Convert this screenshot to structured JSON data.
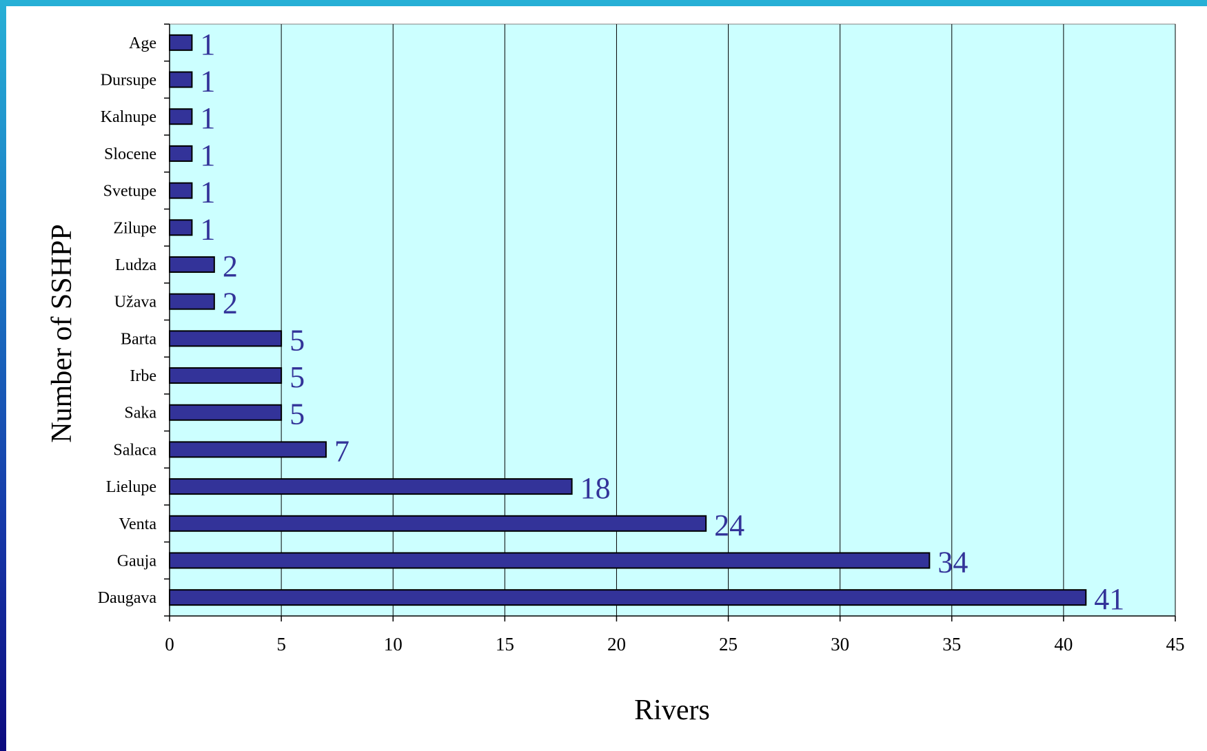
{
  "colors": {
    "plot_background": "#ccffff",
    "bar_fill": "#333399",
    "bar_stroke": "#000000",
    "data_label": "#333399",
    "gridline": "#000000"
  },
  "chart_data": {
    "type": "bar",
    "orientation": "horizontal",
    "categories": [
      "Age",
      "Dursupe",
      "Kalnupe",
      "Slocene",
      "Svetupe",
      "Zilupe",
      "Ludza",
      "Užava",
      "Barta",
      "Irbe",
      "Saka",
      "Salaca",
      "Lielupe",
      "Venta",
      "Gauja",
      "Daugava"
    ],
    "values": [
      1,
      1,
      1,
      1,
      1,
      1,
      2,
      2,
      5,
      5,
      5,
      7,
      18,
      24,
      34,
      41
    ],
    "data_labels": [
      "1",
      "1",
      "1",
      "1",
      "1",
      "1",
      "2",
      "2",
      "5",
      "5",
      "5",
      "7",
      "18",
      "24",
      "34",
      "41"
    ],
    "xlim": [
      0,
      45
    ],
    "x_ticks": [
      0,
      5,
      10,
      15,
      20,
      25,
      30,
      35,
      40,
      45
    ],
    "x_tick_labels": [
      "0",
      "5",
      "10",
      "15",
      "20",
      "25",
      "30",
      "35",
      "40",
      "45"
    ],
    "xlabel": "Rivers",
    "ylabel": "Number of SSHPP",
    "grid": "vertical",
    "legend": "none"
  }
}
